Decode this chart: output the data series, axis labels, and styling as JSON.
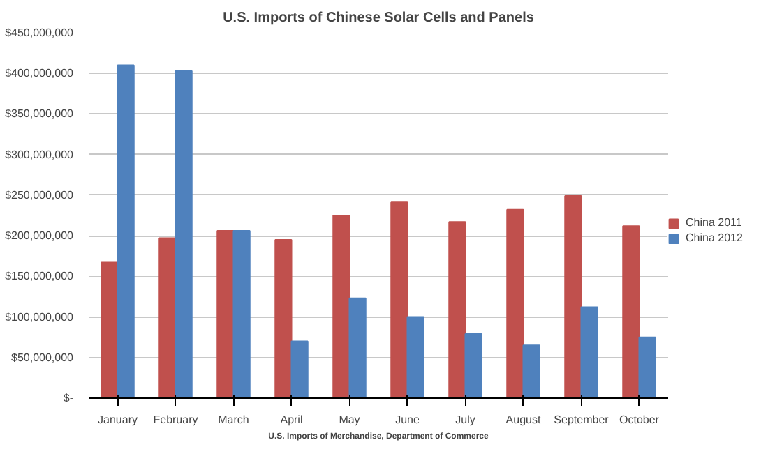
{
  "chart_data": {
    "type": "bar",
    "title": "U.S. Imports of Chinese Solar Cells and Panels",
    "xlabel": "U.S. Imports of Merchandise, Department of Commerce",
    "categories": [
      "January",
      "February",
      "March",
      "April",
      "May",
      "June",
      "July",
      "August",
      "September",
      "October"
    ],
    "series": [
      {
        "name": "China 2011",
        "color": "#c0504d",
        "values": [
          167000000,
          197000000,
          206000000,
          195000000,
          225000000,
          241000000,
          217000000,
          232000000,
          249000000,
          212000000
        ]
      },
      {
        "name": "China 2012",
        "color": "#4f81bd",
        "values": [
          410000000,
          403000000,
          206000000,
          70000000,
          123000000,
          100000000,
          79000000,
          65000000,
          112000000,
          75000000
        ]
      }
    ],
    "ylim": [
      0,
      450000000
    ],
    "yticks": [
      {
        "value": 0,
        "label": "$-"
      },
      {
        "value": 50000000,
        "label": "$50,000,000"
      },
      {
        "value": 100000000,
        "label": "$100,000,000"
      },
      {
        "value": 150000000,
        "label": "$150,000,000"
      },
      {
        "value": 200000000,
        "label": "$200,000,000"
      },
      {
        "value": 250000000,
        "label": "$250,000,000"
      },
      {
        "value": 300000000,
        "label": "$300,000,000"
      },
      {
        "value": 350000000,
        "label": "$350,000,000"
      },
      {
        "value": 400000000,
        "label": "$400,000,000"
      },
      {
        "value": 450000000,
        "label": "$450,000,000"
      }
    ],
    "grid": "y",
    "legend": "right"
  }
}
